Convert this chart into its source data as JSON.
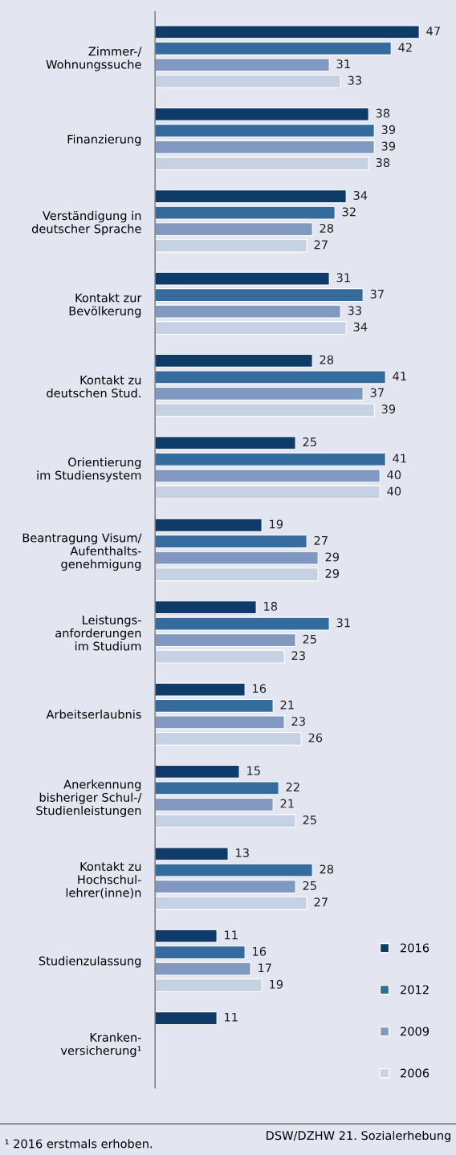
{
  "chart_data": {
    "type": "bar",
    "orientation": "horizontal",
    "data_labels": true,
    "legend": "bottom right",
    "grid": false,
    "categories": [
      "Zimmer-/\nWohnungssuche",
      "Finanzierung",
      "Verständigung in\ndeutscher Sprache",
      "Kontakt zur\nBevölkerung",
      "Kontakt zu\ndeutschen Stud.",
      "Orientierung\nim Studiensystem",
      "Beantragung Visum/\nAufenthalts-\ngenehmigung",
      "Leistungs-\nanforderungen\nim Studium",
      "Arbeitserlaubnis",
      "Anerkennung\nbisheriger Schul-/\nStudienleistungen",
      "Kontakt zu\nHochschul-\nlehrer(inne)n",
      "Studienzulassung",
      "Kranken-\nversicherung¹"
    ],
    "series": [
      {
        "name": "2016",
        "color": "#0f3b69",
        "values": [
          47,
          38,
          34,
          31,
          28,
          25,
          19,
          18,
          16,
          15,
          13,
          11,
          11
        ]
      },
      {
        "name": "2012",
        "color": "#356b9d",
        "values": [
          42,
          39,
          32,
          37,
          41,
          41,
          27,
          31,
          21,
          22,
          28,
          16,
          null
        ]
      },
      {
        "name": "2009",
        "color": "#8199c0",
        "values": [
          31,
          39,
          28,
          33,
          37,
          40,
          29,
          25,
          23,
          21,
          25,
          17,
          null
        ]
      },
      {
        "name": "2006",
        "color": "#c6d1e4",
        "values": [
          33,
          38,
          27,
          34,
          39,
          40,
          29,
          23,
          26,
          25,
          27,
          19,
          null
        ]
      }
    ],
    "annotations": [
      "DSW/DZHW 21. Sozialerhebung",
      "¹ 2016 erstmals erhoben."
    ]
  }
}
